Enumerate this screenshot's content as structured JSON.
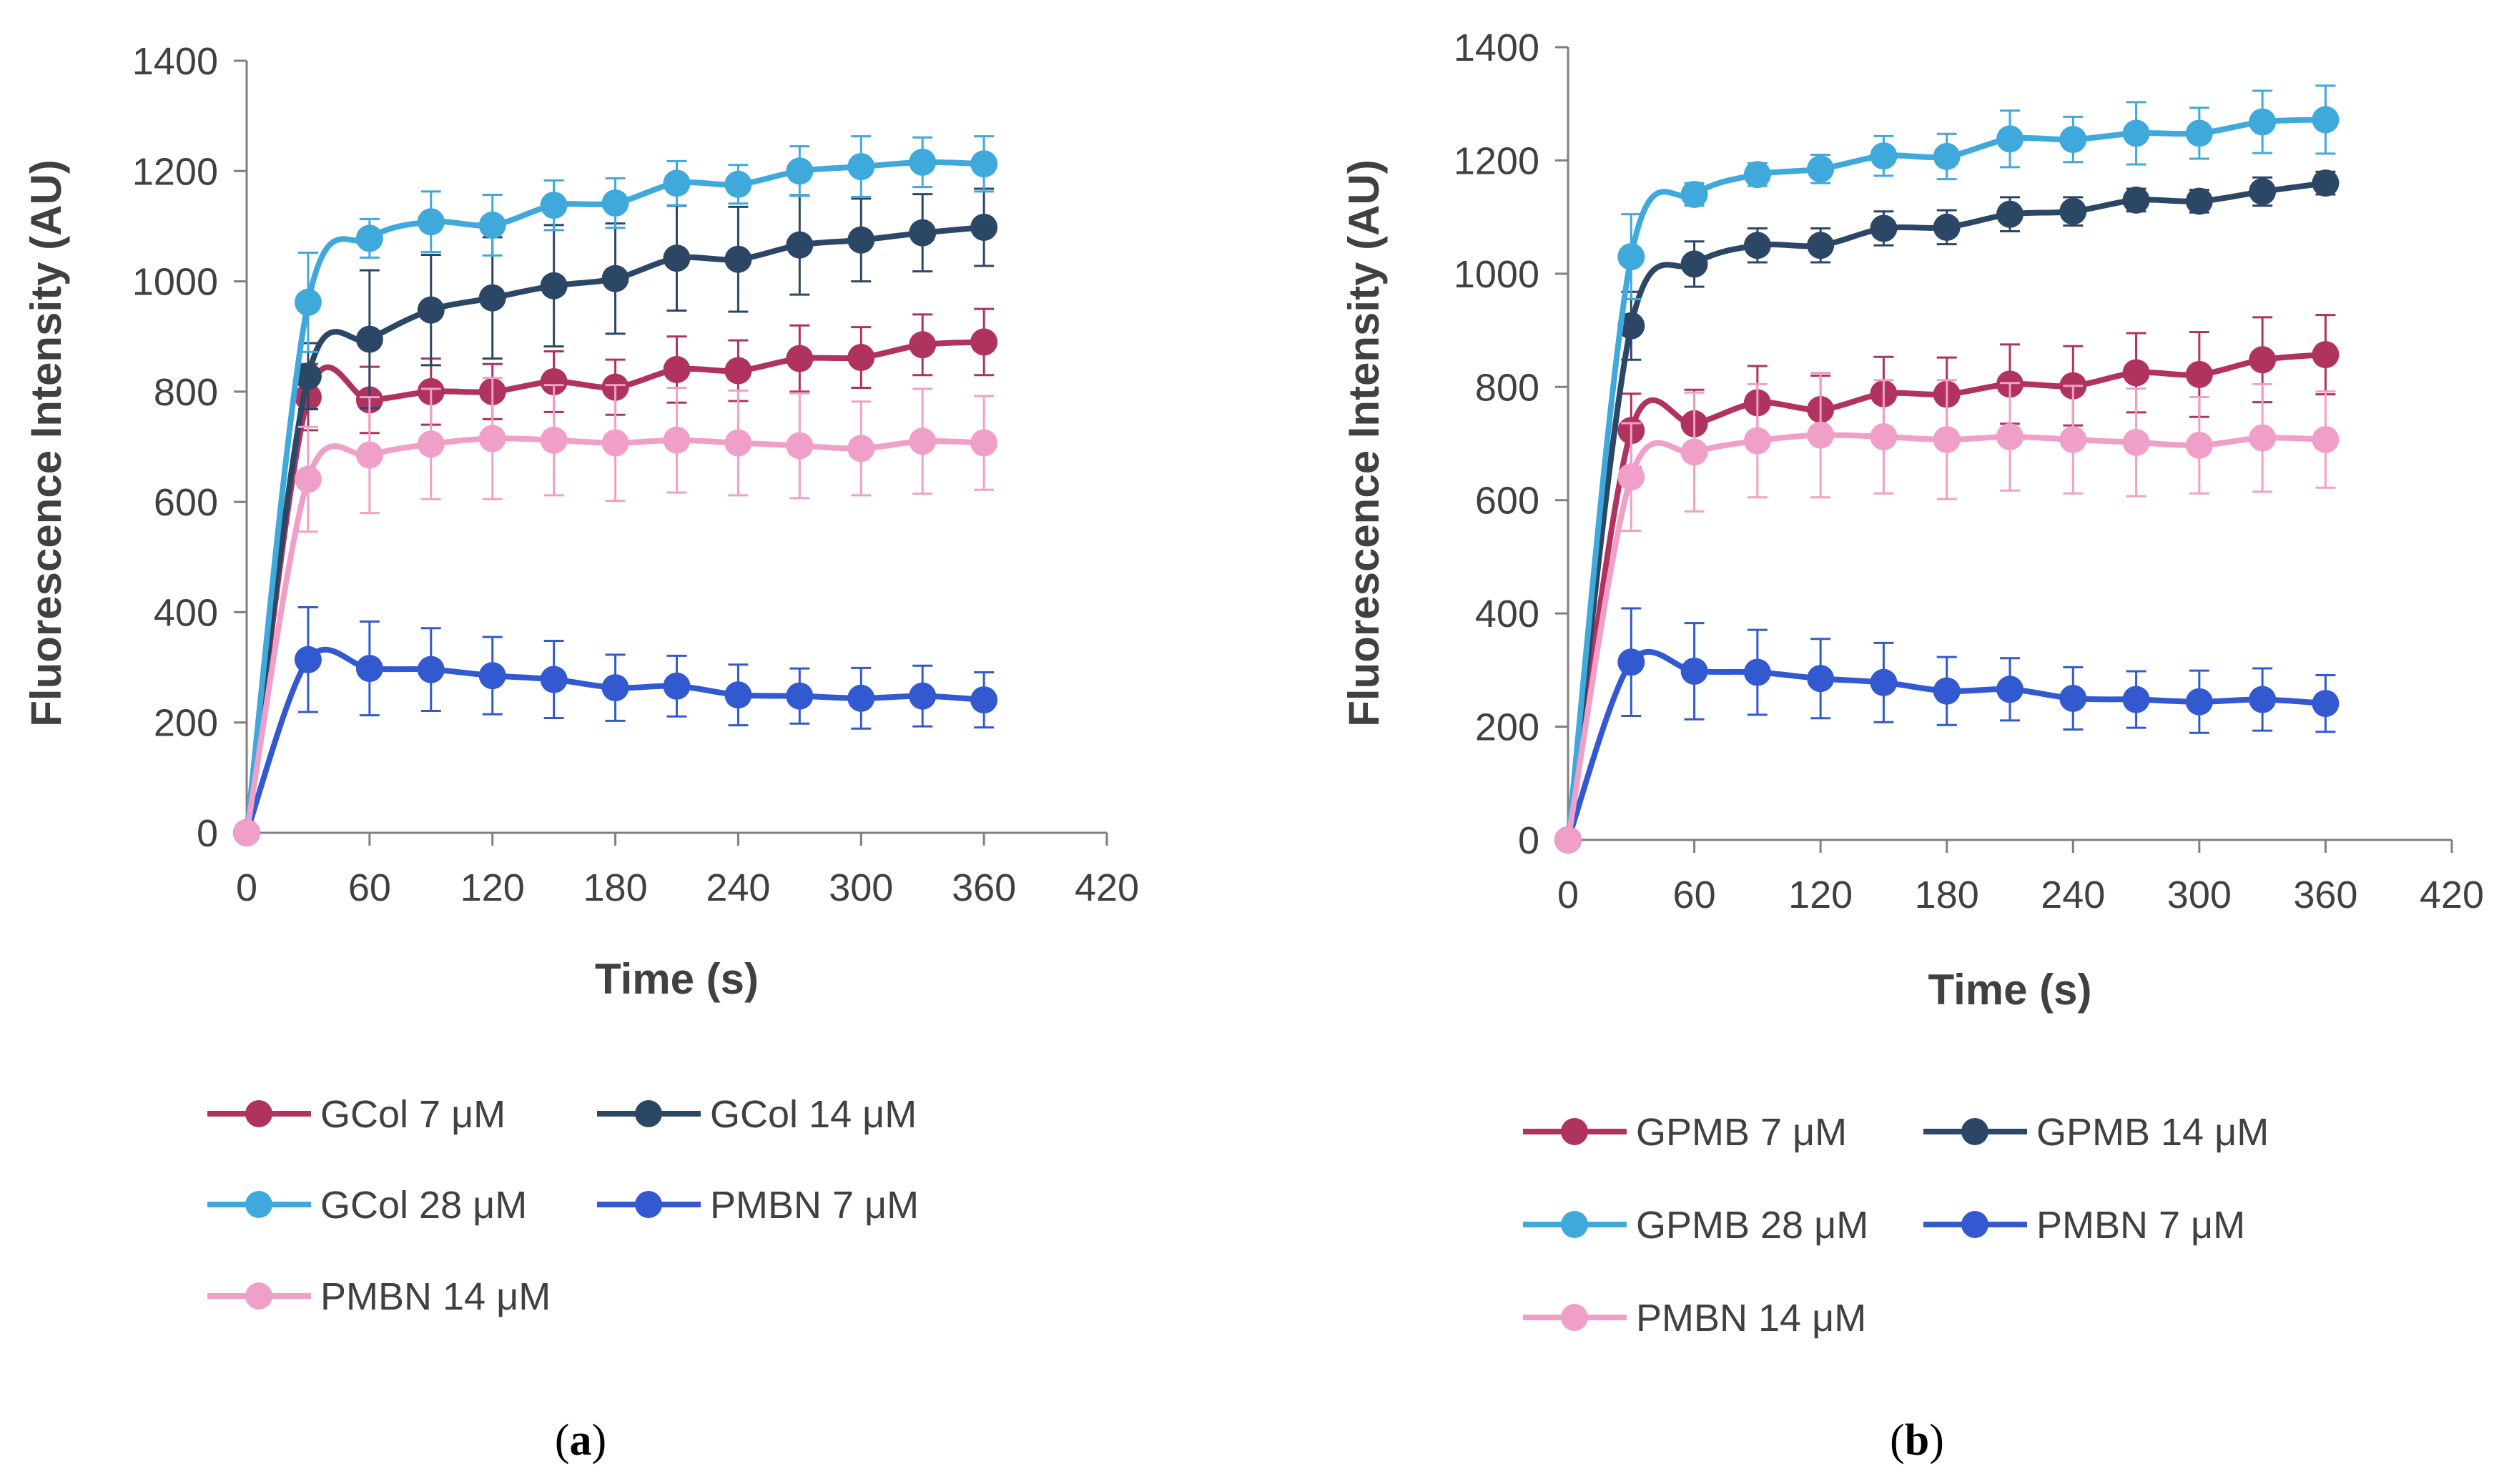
{
  "chart_data": [
    {
      "type": "line",
      "panel_label": "(a)",
      "panel_letter": "a",
      "xlabel": "Time (s)",
      "ylabel": "Fluorescence Intensity (AU)",
      "xlim": [
        0,
        420
      ],
      "ylim": [
        0,
        1400
      ],
      "xticks": [
        0,
        60,
        120,
        180,
        240,
        300,
        360,
        420
      ],
      "yticks": [
        0,
        200,
        400,
        600,
        800,
        1000,
        1200,
        1400
      ],
      "grid": false,
      "legend_position": "bottom",
      "x": [
        0,
        30,
        60,
        90,
        120,
        150,
        180,
        210,
        240,
        270,
        300,
        330,
        360
      ],
      "series": [
        {
          "name": "GCol 7 μM",
          "color": "#b0325f",
          "values": [
            0,
            790,
            785,
            800,
            800,
            818,
            808,
            840,
            838,
            860,
            862,
            885,
            890
          ],
          "errors": [
            0,
            60,
            60,
            60,
            50,
            55,
            50,
            60,
            55,
            60,
            55,
            55,
            60
          ]
        },
        {
          "name": "GCol 14 μM",
          "color": "#2c4766",
          "values": [
            0,
            828,
            895,
            948,
            970,
            992,
            1005,
            1042,
            1040,
            1066,
            1075,
            1088,
            1098
          ],
          "errors": [
            0,
            60,
            125,
            100,
            110,
            110,
            100,
            95,
            95,
            90,
            75,
            70,
            70
          ]
        },
        {
          "name": "GCol 28 μM",
          "color": "#3fa9dc",
          "values": [
            0,
            962,
            1078,
            1108,
            1102,
            1138,
            1142,
            1178,
            1176,
            1200,
            1208,
            1216,
            1213
          ],
          "errors": [
            0,
            90,
            35,
            55,
            55,
            45,
            45,
            40,
            35,
            45,
            55,
            45,
            50
          ]
        },
        {
          "name": "PMBN 7 μM",
          "color": "#3359d1",
          "values": [
            0,
            314,
            298,
            296,
            285,
            278,
            263,
            266,
            250,
            248,
            244,
            248,
            241
          ],
          "errors": [
            0,
            95,
            85,
            75,
            70,
            70,
            60,
            55,
            55,
            50,
            55,
            55,
            50
          ]
        },
        {
          "name": "PMBN 14 μM",
          "color": "#f0a0c8",
          "values": [
            0,
            641,
            685,
            705,
            715,
            712,
            707,
            712,
            707,
            702,
            697,
            710,
            707
          ],
          "errors": [
            0,
            95,
            105,
            100,
            110,
            100,
            105,
            95,
            95,
            95,
            85,
            95,
            85
          ]
        }
      ]
    },
    {
      "type": "line",
      "panel_label": "(b)",
      "panel_letter": "b",
      "xlabel": "Time (s)",
      "ylabel": "Fluorescence Intensity (AU)",
      "xlim": [
        0,
        420
      ],
      "ylim": [
        0,
        1400
      ],
      "xticks": [
        0,
        60,
        120,
        180,
        240,
        300,
        360,
        420
      ],
      "yticks": [
        0,
        200,
        400,
        600,
        800,
        1000,
        1200,
        1400
      ],
      "grid": false,
      "legend_position": "bottom",
      "x": [
        0,
        30,
        60,
        90,
        120,
        150,
        180,
        210,
        240,
        270,
        300,
        330,
        360
      ],
      "series": [
        {
          "name": "GPMB 7 μM",
          "color": "#b0325f",
          "values": [
            0,
            723,
            735,
            772,
            760,
            788,
            787,
            805,
            802,
            825,
            822,
            848,
            857
          ],
          "errors": [
            0,
            65,
            60,
            65,
            60,
            65,
            65,
            70,
            70,
            70,
            75,
            75,
            70
          ]
        },
        {
          "name": "GPMB 14 μM",
          "color": "#2c4766",
          "values": [
            0,
            908,
            1017,
            1050,
            1050,
            1080,
            1082,
            1105,
            1110,
            1130,
            1128,
            1145,
            1160
          ],
          "errors": [
            0,
            60,
            40,
            30,
            30,
            30,
            30,
            30,
            25,
            20,
            20,
            25,
            20
          ]
        },
        {
          "name": "GPMB 28 μM",
          "color": "#3fa9dc",
          "values": [
            0,
            1030,
            1140,
            1175,
            1185,
            1208,
            1207,
            1238,
            1237,
            1248,
            1248,
            1268,
            1272
          ],
          "errors": [
            0,
            75,
            20,
            20,
            25,
            35,
            40,
            50,
            40,
            55,
            45,
            55,
            60
          ]
        },
        {
          "name": "PMBN 7 μM",
          "color": "#3359d1",
          "values": [
            0,
            314,
            298,
            296,
            285,
            278,
            263,
            266,
            250,
            248,
            244,
            248,
            241
          ],
          "errors": [
            0,
            95,
            85,
            75,
            70,
            70,
            60,
            55,
            55,
            50,
            55,
            55,
            50
          ]
        },
        {
          "name": "PMBN 14 μM",
          "color": "#f0a0c8",
          "values": [
            0,
            641,
            685,
            705,
            715,
            712,
            707,
            712,
            707,
            702,
            697,
            710,
            707
          ],
          "errors": [
            0,
            95,
            105,
            100,
            110,
            100,
            105,
            95,
            95,
            95,
            85,
            95,
            85
          ]
        }
      ]
    }
  ]
}
